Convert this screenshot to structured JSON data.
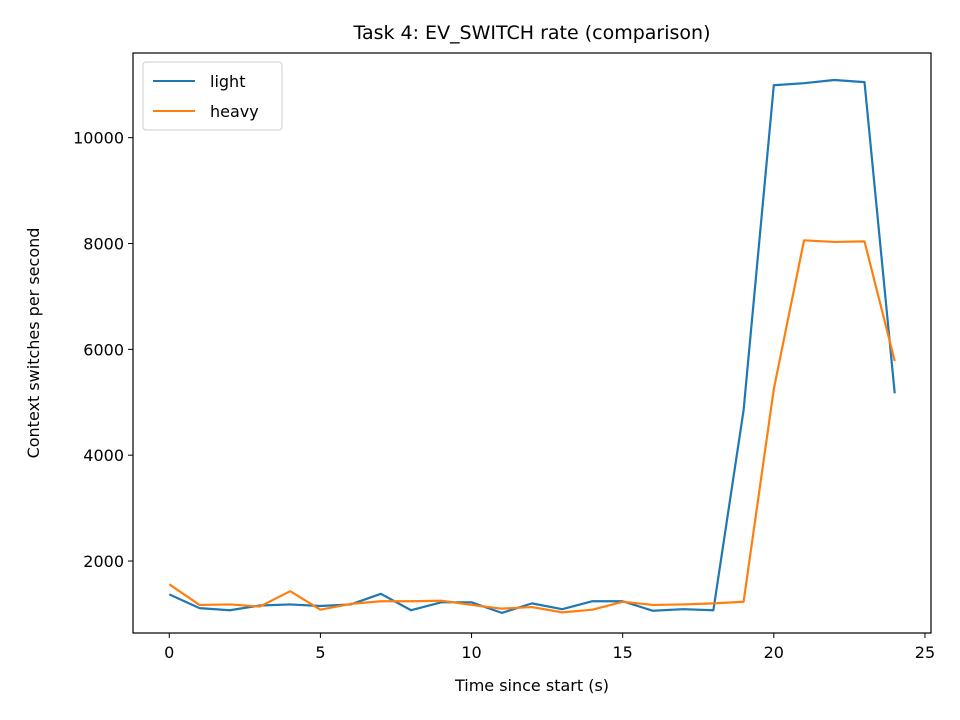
{
  "chart_data": {
    "type": "line",
    "title": "Task 4: EV_SWITCH rate (comparison)",
    "xlabel": "Time since start (s)",
    "ylabel": "Context switches per second",
    "xlim": [
      -1.2,
      25.2
    ],
    "ylim": [
      640,
      11600
    ],
    "xticks": [
      0,
      5,
      10,
      15,
      20,
      25
    ],
    "yticks": [
      2000,
      4000,
      6000,
      8000,
      10000
    ],
    "grid": false,
    "legend_position": "top-left",
    "x": [
      0,
      1,
      2,
      3,
      4,
      5,
      6,
      7,
      8,
      9,
      10,
      11,
      12,
      13,
      14,
      15,
      16,
      17,
      18,
      19,
      20,
      21,
      22,
      23,
      24
    ],
    "series": [
      {
        "name": "light",
        "color": "#1f77b4",
        "values": [
          1370,
          1110,
          1070,
          1160,
          1180,
          1150,
          1180,
          1380,
          1070,
          1220,
          1220,
          1020,
          1200,
          1090,
          1240,
          1240,
          1060,
          1090,
          1070,
          4850,
          10990,
          11030,
          11090,
          11050,
          5170
        ]
      },
      {
        "name": "heavy",
        "color": "#ff7f0e",
        "values": [
          1560,
          1170,
          1180,
          1140,
          1430,
          1080,
          1190,
          1240,
          1240,
          1250,
          1170,
          1100,
          1130,
          1030,
          1080,
          1230,
          1170,
          1180,
          1200,
          1230,
          5250,
          8060,
          8030,
          8040,
          5780
        ]
      }
    ]
  }
}
